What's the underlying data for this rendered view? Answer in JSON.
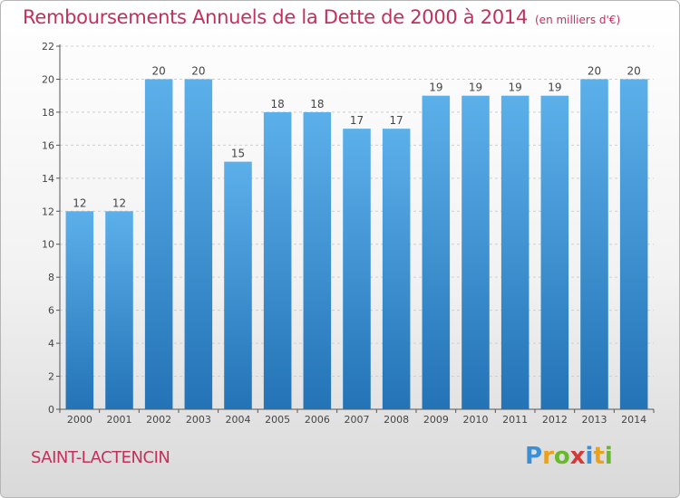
{
  "header": {
    "title": "Remboursements Annuels de la Dette de 2000 à 2014",
    "unit": "(en milliers d'€)"
  },
  "footer": {
    "commune": "SAINT-LACTENCIN",
    "logo": "Proxiti"
  },
  "colors": {
    "bar_light": "#5cb0ea",
    "bar_dark": "#2373b6",
    "title": "#c2305b"
  },
  "chart_data": {
    "type": "bar",
    "categories": [
      "2000",
      "2001",
      "2002",
      "2003",
      "2004",
      "2005",
      "2006",
      "2007",
      "2008",
      "2009",
      "2010",
      "2011",
      "2012",
      "2013",
      "2014"
    ],
    "values": [
      12,
      12,
      20,
      20,
      15,
      18,
      18,
      17,
      17,
      19,
      19,
      19,
      19,
      20,
      20
    ],
    "title": "Remboursements Annuels de la Dette de 2000 à 2014",
    "ylim": [
      0,
      22
    ],
    "yticks": [
      0,
      2,
      4,
      6,
      8,
      10,
      12,
      14,
      16,
      18,
      20,
      22
    ],
    "grid": true
  }
}
